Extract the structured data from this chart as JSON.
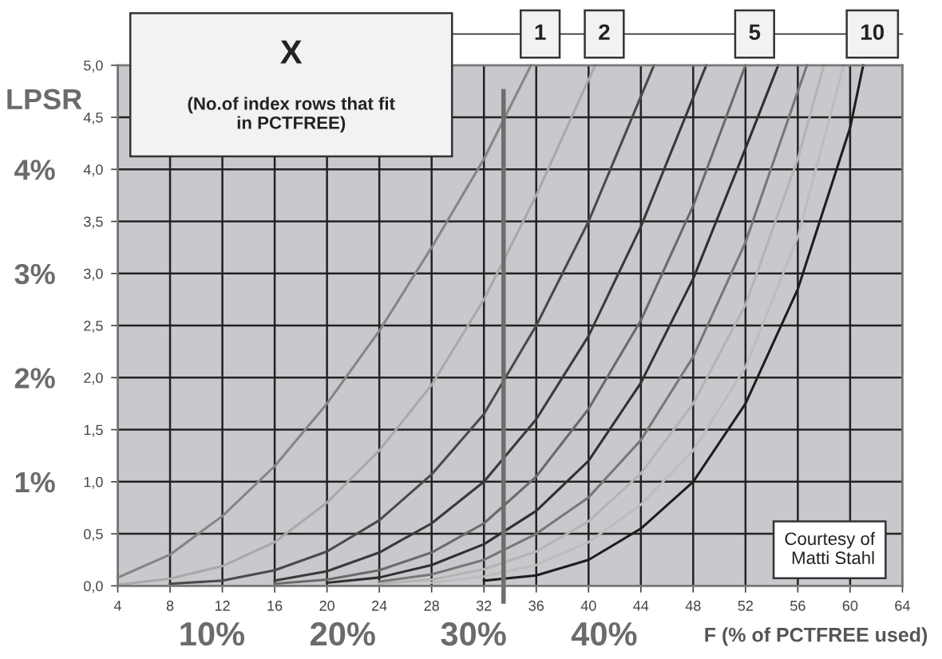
{
  "chart_data": {
    "type": "line",
    "title": "X",
    "subtitle": "(No.of index rows that fit\nin PCTFREE)",
    "xlabel": "F (% of PCTFREE used)",
    "y2label": "LPSR",
    "annotations": [
      "Courtesy of\nMatti Stahl"
    ],
    "series": [
      {
        "name": "1",
        "color": "#858585",
        "x": [
          4,
          8,
          12,
          16,
          20,
          24,
          28,
          32,
          35.6
        ],
        "values": [
          0.08,
          0.3,
          0.67,
          1.15,
          1.75,
          2.45,
          3.25,
          4.1,
          5.0
        ]
      },
      {
        "name": "2",
        "color": "#a9a9a9",
        "x": [
          4,
          8,
          12,
          16,
          20,
          24,
          28,
          32,
          36,
          40.5
        ],
        "values": [
          0.01,
          0.07,
          0.19,
          0.42,
          0.8,
          1.3,
          1.93,
          2.75,
          3.75,
          5.0
        ]
      },
      {
        "color": "#4a4a4a",
        "x": [
          8,
          12,
          16,
          20,
          24,
          28,
          32,
          36,
          40,
          45
        ],
        "values": [
          0.02,
          0.05,
          0.15,
          0.33,
          0.63,
          1.07,
          1.65,
          2.5,
          3.5,
          5.0
        ]
      },
      {
        "color": "#3a3a3a",
        "x": [
          16,
          20,
          24,
          28,
          32,
          36,
          40,
          44,
          49
        ],
        "values": [
          0.05,
          0.14,
          0.32,
          0.6,
          1.0,
          1.6,
          2.4,
          3.45,
          5.0
        ]
      },
      {
        "name": "5",
        "color": "#6a6a6a",
        "x": [
          16,
          20,
          24,
          28,
          32,
          36,
          40,
          44,
          48,
          52
        ],
        "values": [
          0.02,
          0.06,
          0.15,
          0.32,
          0.6,
          1.05,
          1.7,
          2.55,
          3.65,
          5.0
        ]
      },
      {
        "color": "#303030",
        "x": [
          20,
          24,
          28,
          32,
          36,
          40,
          44,
          48,
          52,
          54.5
        ],
        "values": [
          0.03,
          0.08,
          0.2,
          0.4,
          0.72,
          1.2,
          1.95,
          2.95,
          4.2,
          5.0
        ]
      },
      {
        "color": "#777777",
        "x": [
          24,
          28,
          32,
          36,
          40,
          44,
          48,
          52,
          56.7
        ],
        "values": [
          0.04,
          0.11,
          0.25,
          0.5,
          0.85,
          1.4,
          2.2,
          3.3,
          5.0
        ]
      },
      {
        "color": "#b4b4b4",
        "x": [
          24,
          28,
          32,
          36,
          40,
          44,
          48,
          52,
          56,
          58
        ],
        "values": [
          0.02,
          0.06,
          0.16,
          0.33,
          0.62,
          1.08,
          1.75,
          2.7,
          4.1,
          5.0
        ]
      },
      {
        "color": "#bdbdbd",
        "x": [
          28,
          32,
          36,
          40,
          44,
          48,
          52,
          56,
          59.5
        ],
        "values": [
          0.03,
          0.09,
          0.2,
          0.42,
          0.78,
          1.3,
          2.1,
          3.35,
          5.0
        ]
      },
      {
        "name": "10",
        "color": "#1e1e1e",
        "x": [
          32,
          36,
          40,
          44,
          48,
          52,
          56,
          60,
          61
        ],
        "values": [
          0.05,
          0.1,
          0.25,
          0.55,
          1.0,
          1.75,
          2.85,
          4.4,
          5.0
        ]
      }
    ],
    "xlim": [
      4,
      64
    ],
    "xticks": [
      4,
      8,
      12,
      16,
      20,
      24,
      28,
      32,
      36,
      40,
      44,
      48,
      52,
      56,
      60,
      64
    ],
    "ylim": [
      0,
      5
    ],
    "yticks": [
      {
        "value": 0,
        "label": "0,0"
      },
      {
        "value": 0.5,
        "label": "0,5"
      },
      {
        "value": 1,
        "label": "1,0"
      },
      {
        "value": 1.5,
        "label": "1,5"
      },
      {
        "value": 2,
        "label": "2,0"
      },
      {
        "value": 2.5,
        "label": "2,5"
      },
      {
        "value": 3,
        "label": "3,0"
      },
      {
        "value": 3.5,
        "label": "3,5"
      },
      {
        "value": 4,
        "label": "4,0"
      },
      {
        "value": 4.5,
        "label": "4,5"
      },
      {
        "value": 5,
        "label": "5,0"
      }
    ],
    "y2lim": [
      0,
      5
    ],
    "y2ticks": [
      {
        "value": 1,
        "label": "1%"
      },
      {
        "value": 2,
        "label": "2%"
      },
      {
        "value": 3,
        "label": "3%"
      },
      {
        "value": 4,
        "label": "4%"
      }
    ],
    "x2lim": [
      2.8,
      62.8
    ],
    "x2ticks": [
      {
        "value": 10,
        "label": "10%"
      },
      {
        "value": 20,
        "label": "20%"
      },
      {
        "value": 30,
        "label": "30%"
      },
      {
        "value": 40,
        "label": "40%"
      }
    ],
    "ref_lines": [
      {
        "axis": "x",
        "value": 33.5,
        "color": "#6e6e6e"
      }
    ],
    "grid": true,
    "marker": "none",
    "line_style": "solid"
  }
}
